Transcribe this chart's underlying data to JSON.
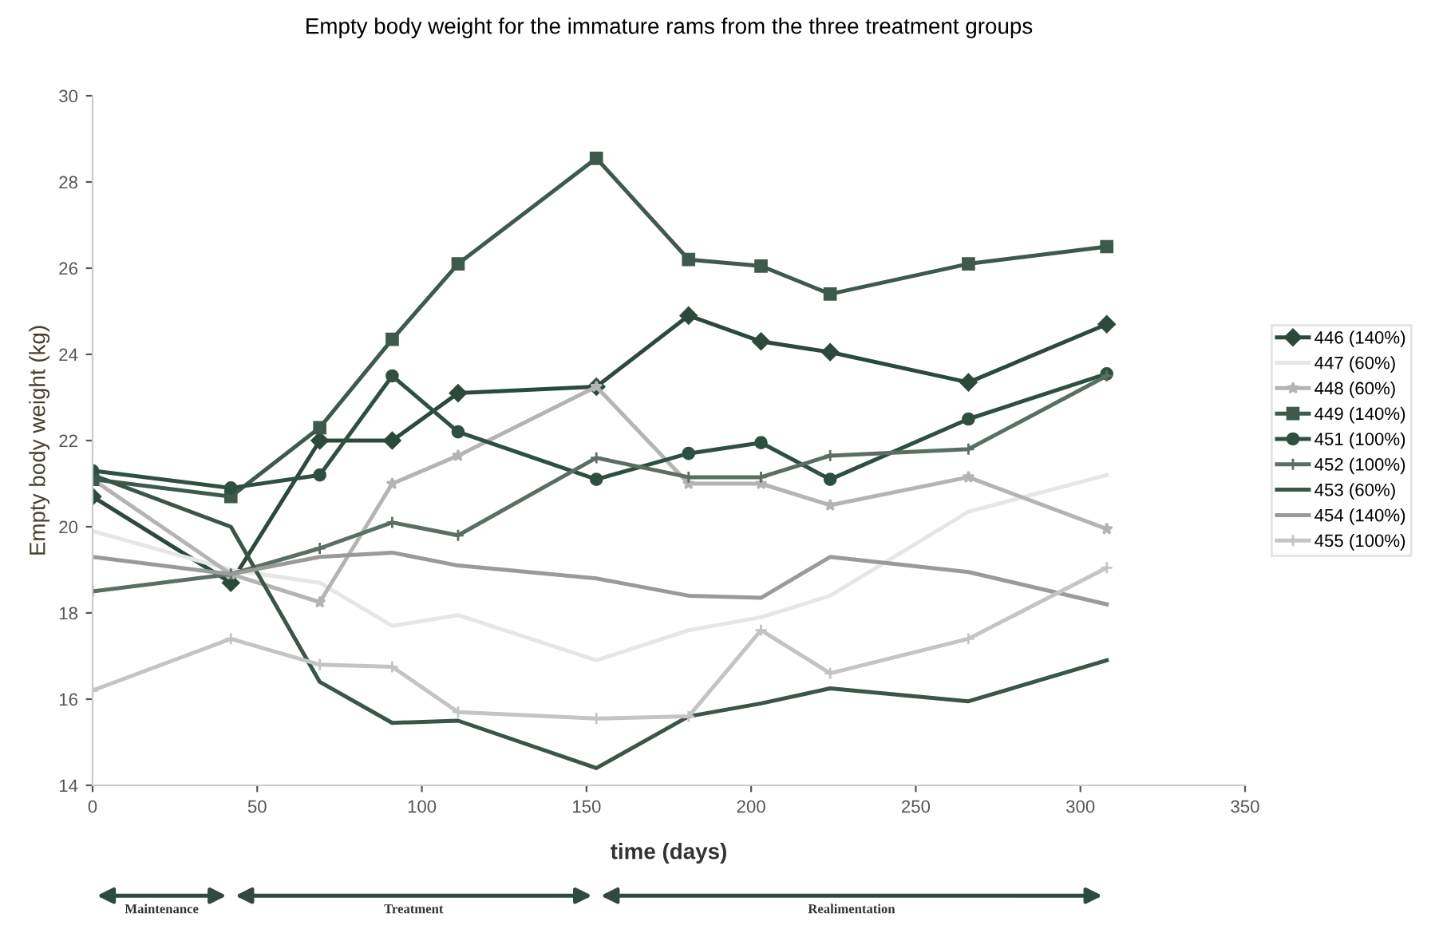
{
  "chart_data": {
    "type": "line",
    "title": "Empty body weight for the immature rams from the three treatment groups",
    "xlabel": "time (days)",
    "ylabel": "Empty body weight (kg)",
    "x": [
      0,
      42,
      69,
      91,
      111,
      153,
      181,
      203,
      224,
      266,
      308
    ],
    "xlim": [
      0,
      350
    ],
    "xticks": [
      0,
      50,
      100,
      150,
      200,
      250,
      300,
      350
    ],
    "ylim": [
      14,
      30
    ],
    "yticks": [
      14,
      16,
      18,
      20,
      22,
      24,
      26,
      28,
      30
    ],
    "grid": false,
    "legend": "right",
    "series": [
      {
        "name": "446 (140%)",
        "color": "#2c4a3c",
        "marker": "diamond",
        "values": [
          20.7,
          18.7,
          22.0,
          22.0,
          23.1,
          23.25,
          24.9,
          24.3,
          24.05,
          23.35,
          24.7
        ]
      },
      {
        "name": "447 (60%)",
        "color": "#e6e6e6",
        "marker": "none",
        "values": [
          19.9,
          19.0,
          18.7,
          17.7,
          17.95,
          16.9,
          17.6,
          17.9,
          18.4,
          20.35,
          21.2
        ]
      },
      {
        "name": "448 (60%)",
        "color": "#b4b4b4",
        "marker": "star",
        "values": [
          21.1,
          18.9,
          18.25,
          21.0,
          21.65,
          23.25,
          21.0,
          21.0,
          20.5,
          21.15,
          19.95
        ]
      },
      {
        "name": "449 (140%)",
        "color": "#3d5a4c",
        "marker": "square",
        "values": [
          21.1,
          20.7,
          22.3,
          24.35,
          26.1,
          28.55,
          26.2,
          26.05,
          25.4,
          26.1,
          26.5
        ]
      },
      {
        "name": "451 (100%)",
        "color": "#2e5040",
        "marker": "circle",
        "values": [
          21.3,
          20.9,
          21.2,
          23.5,
          22.2,
          21.1,
          21.7,
          21.95,
          21.1,
          22.5,
          23.55
        ]
      },
      {
        "name": "452 (100%)",
        "color": "#5a6e62",
        "marker": "cross",
        "values": [
          18.5,
          18.9,
          19.5,
          20.1,
          19.8,
          21.6,
          21.15,
          21.15,
          21.65,
          21.8,
          23.5
        ]
      },
      {
        "name": "453 (60%)",
        "color": "#3b5546",
        "marker": "none",
        "values": [
          21.2,
          20.0,
          16.4,
          15.45,
          15.5,
          14.4,
          15.6,
          15.9,
          16.25,
          15.95,
          16.9
        ]
      },
      {
        "name": "454 (140%)",
        "color": "#9a9a9a",
        "marker": "none",
        "values": [
          19.3,
          18.9,
          19.3,
          19.4,
          19.1,
          18.8,
          18.4,
          18.35,
          19.3,
          18.95,
          18.2
        ]
      },
      {
        "name": "455 (100%)",
        "color": "#c4c4c4",
        "marker": "cross",
        "values": [
          16.2,
          17.4,
          16.8,
          16.75,
          15.7,
          15.55,
          15.6,
          17.6,
          16.6,
          17.4,
          19.05
        ]
      }
    ],
    "annotations": [
      "Maintenance",
      "Treatment",
      "Realimentation"
    ]
  }
}
